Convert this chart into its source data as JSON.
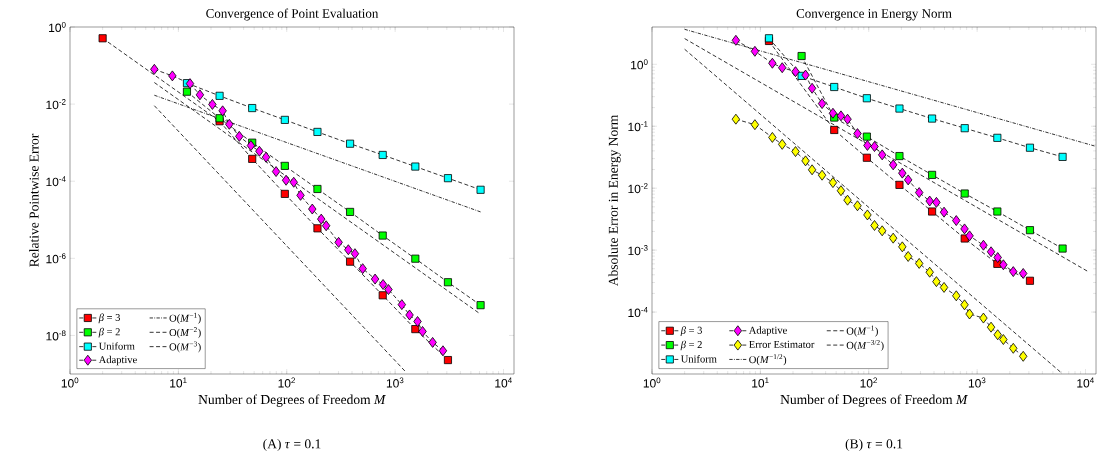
{
  "chart_data": [
    {
      "type": "line",
      "title": "Convergence of Point Evaluation",
      "xlabel": "Number of Degrees of Freedom *M*",
      "ylabel": "Relative Pointwise Error",
      "annotations": [
        "(A) *τ* = 0.1"
      ],
      "log": "xy",
      "legend": "bottom left",
      "xlim": [
        1,
        12500
      ],
      "ylim": [
        1e-09,
        1
      ],
      "xticks": [
        {
          "value": 1,
          "label": "10$^{0}$"
        },
        {
          "value": 10,
          "label": "10$^{1}$"
        },
        {
          "value": 100,
          "label": "10$^{2}$"
        },
        {
          "value": 1000,
          "label": "10$^{3}$"
        },
        {
          "value": 10000,
          "label": "10$^{4}$"
        }
      ],
      "yticks": [
        {
          "value": 1e-08,
          "label": "10$^{-8}$"
        },
        {
          "value": 1e-06,
          "label": "10$^{-6}$"
        },
        {
          "value": 0.0001,
          "label": "10$^{-4}$"
        },
        {
          "value": 0.01,
          "label": "10$^{-2}$"
        },
        {
          "value": 1,
          "label": "10$^{0}$"
        }
      ],
      "series": [
        {
          "name": "*β* = 3",
          "color": "#ff0000",
          "marker": "square",
          "line_style": "dashed",
          "x": [
            2,
            24,
            48,
            96,
            192,
            384,
            768,
            1536,
            3072
          ],
          "values": [
            0.51,
            0.0036,
            0.00038,
            4.7e-05,
            6e-06,
            8.2e-07,
            1.1e-07,
            1.46e-08,
            2.3e-09
          ]
        },
        {
          "name": "*β* = 2",
          "color": "#00ff00",
          "marker": "square",
          "line_style": "dashed",
          "x": [
            12,
            24,
            48,
            96,
            192,
            384,
            768,
            1536,
            3072,
            6144
          ],
          "values": [
            0.021,
            0.0043,
            0.001,
            0.00025,
            6.3e-05,
            1.6e-05,
            3.9e-06,
            9.8e-07,
            2.4e-07,
            6.1e-08
          ]
        },
        {
          "name": "Uniform",
          "color": "#00ffff",
          "marker": "square",
          "line_style": "dashed",
          "x": [
            12,
            24,
            48,
            96,
            192,
            384,
            768,
            1536,
            3072,
            6144
          ],
          "values": [
            0.035,
            0.0164,
            0.0079,
            0.0039,
            0.0019,
            0.00094,
            0.00048,
            0.00024,
            0.00012,
            6e-05
          ]
        },
        {
          "name": "Adaptive",
          "color": "#ff00ff",
          "marker": "diamond",
          "line_style": "dashed",
          "x": [
            6,
            8.8,
            12.8,
            15.8,
            20.6,
            25.6,
            29.5,
            36.5,
            46.7,
            55.9,
            64.4,
            79.7,
            98.6,
            116,
            134,
            172,
            208,
            231,
            301,
            370,
            426,
            502,
            653,
            774,
            868,
            1153,
            1358,
            1610,
            1791,
            2218,
            2763
          ],
          "values": [
            0.08,
            0.054,
            0.034,
            0.0174,
            0.0098,
            0.0067,
            0.003,
            0.00146,
            0.00084,
            0.0006,
            0.00042,
            0.000178,
            0.000106,
            9.4e-05,
            4.3e-05,
            1.9e-05,
            1.04e-05,
            7e-06,
            2.6e-06,
            1.67e-06,
            1.32e-06,
            5.4e-07,
            2.9e-07,
            2.1e-07,
            1.55e-07,
            6.3e-08,
            3.4e-08,
            2.3e-08,
            1.27e-08,
            6.6e-09,
            4e-09
          ]
        },
        {
          "name": "O(*M*$^{−1}$)",
          "color": "#000000",
          "marker": "none",
          "line_style": "dashdot",
          "x": [
            6,
            6144
          ],
          "values": [
            0.017,
            1.6e-05
          ]
        },
        {
          "name": "O(*M*$^{−2}$)",
          "color": "#000000",
          "marker": "none",
          "line_style": "dashed",
          "x": [
            6,
            5870
          ],
          "values": [
            0.0363,
            3.9e-08
          ]
        },
        {
          "name": "O(*M*$^{−3}$)",
          "color": "#000000",
          "marker": "none",
          "line_style": "dashed",
          "x": [
            6,
            1229
          ],
          "values": [
            0.0091,
            1.2e-09
          ]
        }
      ]
    },
    {
      "type": "line",
      "title": "Convergence in Energy Norm",
      "xlabel": "Number of Degrees of Freedom *M*",
      "ylabel": "Absolute Error in Energy Norm",
      "annotations": [
        "(B) *τ* = 0.1"
      ],
      "log": "xy",
      "legend": "bottom left",
      "xlim": [
        1,
        12500
      ],
      "ylim": [
        1e-05,
        4
      ],
      "xticks": [
        {
          "value": 1,
          "label": "10$^{0}$"
        },
        {
          "value": 10,
          "label": "10$^{1}$"
        },
        {
          "value": 100,
          "label": "10$^{2}$"
        },
        {
          "value": 1000,
          "label": "10$^{3}$"
        },
        {
          "value": 10000,
          "label": "10$^{4}$"
        }
      ],
      "yticks": [
        {
          "value": 0.0001,
          "label": "10$^{-4}$"
        },
        {
          "value": 0.001,
          "label": "10$^{-3}$"
        },
        {
          "value": 0.01,
          "label": "10$^{-2}$"
        },
        {
          "value": 0.1,
          "label": "10$^{-1}$"
        },
        {
          "value": 1,
          "label": "10$^{0}$"
        }
      ],
      "series": [
        {
          "name": "*β* = 3",
          "color": "#ff0000",
          "marker": "square",
          "line_style": "dashed",
          "x": [
            12,
            48,
            96,
            192,
            384,
            768,
            1536,
            3072
          ],
          "values": [
            2.38,
            0.087,
            0.031,
            0.0113,
            0.0042,
            0.00154,
            0.0006,
            0.00032
          ]
        },
        {
          "name": "*β* = 2",
          "color": "#00ff00",
          "marker": "square",
          "line_style": "dashed",
          "x": [
            24,
            48,
            96,
            192,
            384,
            768,
            1536,
            3072,
            6144
          ],
          "values": [
            1.36,
            0.138,
            0.068,
            0.033,
            0.0164,
            0.0082,
            0.0042,
            0.0021,
            0.00106
          ]
        },
        {
          "name": "Uniform",
          "color": "#00ffff",
          "marker": "square",
          "line_style": "dashed",
          "x": [
            12,
            24,
            48,
            96,
            192,
            384,
            768,
            1536,
            3072,
            6144
          ],
          "values": [
            2.63,
            0.65,
            0.43,
            0.283,
            0.193,
            0.133,
            0.093,
            0.065,
            0.045,
            0.032
          ]
        },
        {
          "name": "Adaptive",
          "color": "#ff00ff",
          "marker": "diamond",
          "line_style": "dashed",
          "x": [
            5.94,
            8.9,
            12.9,
            15.9,
            21.1,
            26.1,
            30.0,
            37.1,
            46.7,
            55.4,
            63.7,
            78.7,
            97.2,
            113,
            133,
            168,
            204,
            231,
            292,
            365,
            421,
            495,
            642,
            765,
            851,
            1143,
            1344,
            1548,
            1746,
            2155,
            2661
          ],
          "values": [
            2.44,
            1.62,
            1.04,
            0.88,
            0.76,
            0.67,
            0.41,
            0.232,
            0.162,
            0.147,
            0.13,
            0.076,
            0.049,
            0.047,
            0.0345,
            0.0238,
            0.0175,
            0.0136,
            0.0085,
            0.0062,
            0.0059,
            0.0041,
            0.003,
            0.0022,
            0.0017,
            0.0012,
            0.00094,
            0.00076,
            0.00058,
            0.00045,
            0.00042
          ]
        },
        {
          "name": "Error Estimator",
          "color": "#ffff00",
          "marker": "diamond",
          "line_style": "dashed",
          "x": [
            5.94,
            8.9,
            12.9,
            15.9,
            21.1,
            26.1,
            30.0,
            37.1,
            46.7,
            55.4,
            63.7,
            78.7,
            97.2,
            113,
            133,
            168,
            204,
            231,
            292,
            365,
            421,
            495,
            642,
            765,
            851,
            1143,
            1344,
            1548,
            1746,
            2155,
            2661
          ],
          "values": [
            0.13,
            0.106,
            0.066,
            0.051,
            0.039,
            0.0276,
            0.0198,
            0.0162,
            0.0123,
            0.0091,
            0.0064,
            0.0052,
            0.0037,
            0.0025,
            0.00205,
            0.00156,
            0.00113,
            0.00079,
            0.00061,
            0.00044,
            0.00031,
            0.00025,
            0.000183,
            0.000131,
            9.3e-05,
            8e-05,
            5.7e-05,
            4.3e-05,
            3.6e-05,
            2.6e-05,
            1.93e-05
          ]
        },
        {
          "name": "O(*M*$^{−1/2}$)",
          "color": "#000000",
          "marker": "none",
          "line_style": "dashdot",
          "x": [
            2,
            12100
          ],
          "values": [
            3.67,
            0.048
          ]
        },
        {
          "name": "O(*M*$^{−1}$)",
          "color": "#000000",
          "marker": "none",
          "line_style": "dashed",
          "x": [
            2,
            10350
          ],
          "values": [
            2.6,
            0.00046
          ]
        },
        {
          "name": "O(*M*$^{−3/2}$)",
          "color": "#000000",
          "marker": "none",
          "line_style": "dashed",
          "x": [
            2,
            5860
          ],
          "values": [
            1.75,
            1.08e-05
          ]
        }
      ]
    }
  ]
}
